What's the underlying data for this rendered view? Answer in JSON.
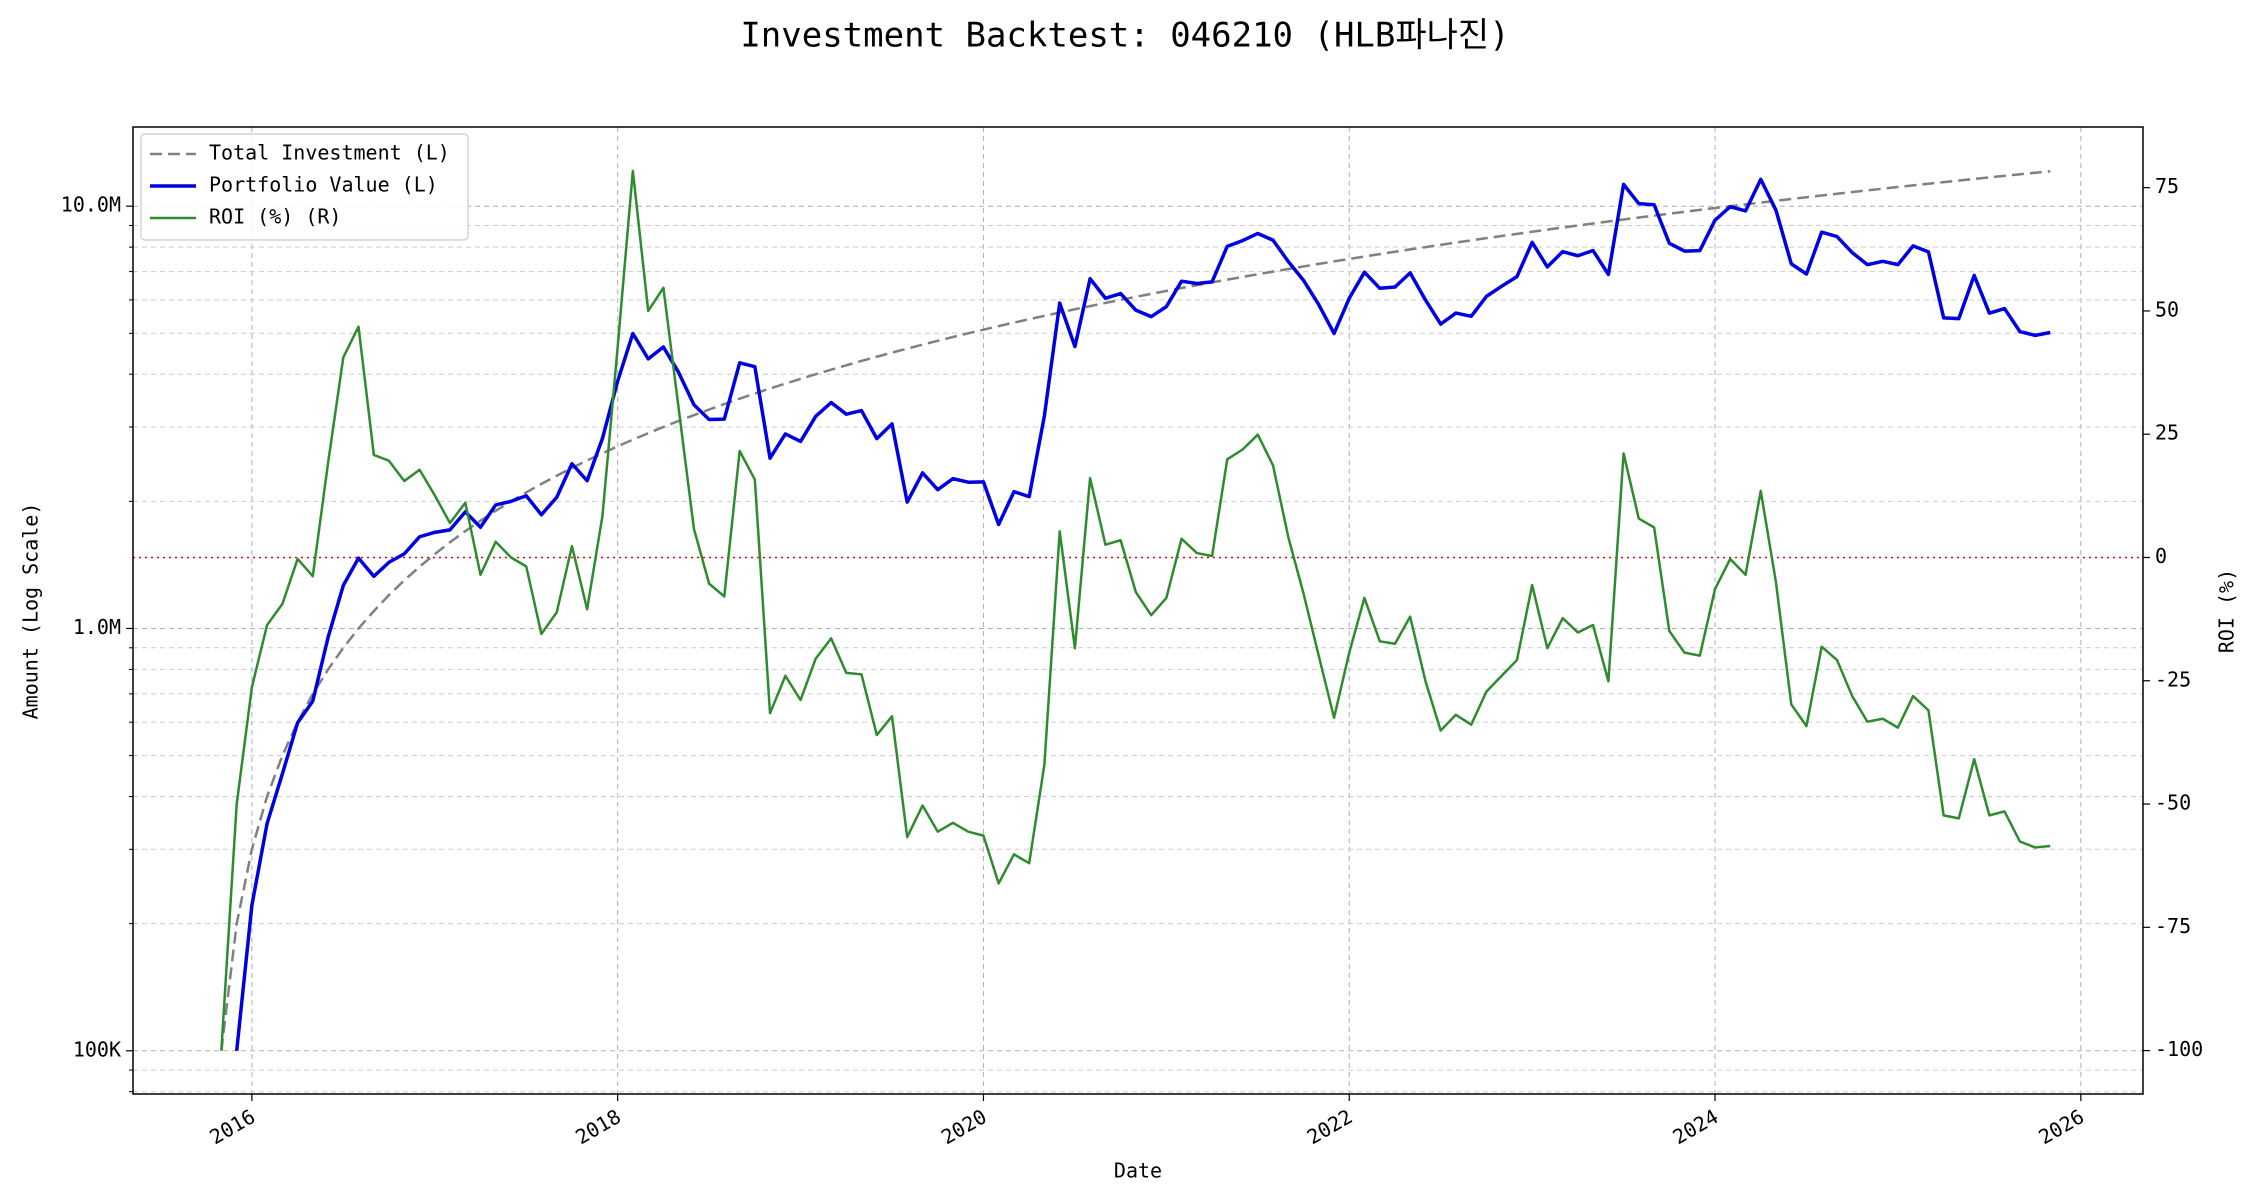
{
  "chart_data": {
    "type": "line",
    "title": "Investment Backtest: 046210 (HLB파나진)",
    "x_label": "Date",
    "y_label": "Amount (Log Scale)",
    "y2_label": "ROI (%)",
    "ylog": true,
    "grid": true,
    "legend": "upper left",
    "y_color": "#0000cd",
    "y2_color": "#228b22",
    "xlim": [
      2015.35,
      2026.34
    ],
    "xticks": [
      2016,
      2018,
      2020,
      2022,
      2024,
      2026
    ],
    "ylim": [
      79000,
      15400000
    ],
    "yticks": [
      {
        "value": 100000,
        "label": "100K"
      },
      {
        "value": 1000000,
        "label": "1.0M"
      },
      {
        "value": 10000000,
        "label": "10.0M"
      }
    ],
    "yminorticks": [
      80000,
      90000,
      200000,
      300000,
      400000,
      500000,
      600000,
      700000,
      800000,
      900000,
      2000000,
      3000000,
      4000000,
      5000000,
      6000000,
      7000000,
      8000000,
      9000000
    ],
    "y2lim": [
      -108.8,
      87.3
    ],
    "y2ticks": [
      -100,
      -75,
      -50,
      -25,
      0,
      25,
      50,
      75
    ],
    "hline": {
      "value": 0,
      "axis": "y2",
      "color": "#ff0000",
      "linestyle": "dotted"
    },
    "x": [
      2015.833,
      2015.917,
      2016,
      2016.083,
      2016.167,
      2016.25,
      2016.333,
      2016.417,
      2016.5,
      2016.583,
      2016.667,
      2016.75,
      2016.833,
      2016.917,
      2017,
      2017.083,
      2017.167,
      2017.25,
      2017.333,
      2017.417,
      2017.5,
      2017.583,
      2017.667,
      2017.75,
      2017.833,
      2017.917,
      2018,
      2018.083,
      2018.167,
      2018.25,
      2018.333,
      2018.417,
      2018.5,
      2018.583,
      2018.667,
      2018.75,
      2018.833,
      2018.917,
      2019,
      2019.083,
      2019.167,
      2019.25,
      2019.333,
      2019.417,
      2019.5,
      2019.583,
      2019.667,
      2019.75,
      2019.833,
      2019.917,
      2020,
      2020.083,
      2020.167,
      2020.25,
      2020.333,
      2020.417,
      2020.5,
      2020.583,
      2020.667,
      2020.75,
      2020.833,
      2020.917,
      2021,
      2021.083,
      2021.167,
      2021.25,
      2021.333,
      2021.417,
      2021.5,
      2021.583,
      2021.667,
      2021.75,
      2021.833,
      2021.917,
      2022,
      2022.083,
      2022.167,
      2022.25,
      2022.333,
      2022.417,
      2022.5,
      2022.583,
      2022.667,
      2022.75,
      2022.833,
      2022.917,
      2023,
      2023.083,
      2023.167,
      2023.25,
      2023.333,
      2023.417,
      2023.5,
      2023.583,
      2023.667,
      2023.75,
      2023.833,
      2023.917,
      2024,
      2024.083,
      2024.167,
      2024.25,
      2024.333,
      2024.417,
      2024.5,
      2024.583,
      2024.667,
      2024.75,
      2024.833,
      2024.917,
      2025,
      2025.083,
      2025.167,
      2025.25,
      2025.333,
      2025.417,
      2025.5,
      2025.583,
      2025.667,
      2025.75,
      2025.833
    ],
    "series": [
      {
        "name": "Total Investment (L)",
        "color": "#808080",
        "linestyle": "dashed",
        "axis": "y",
        "values": [
          100000,
          200000,
          300000,
          400000,
          500000,
          600000,
          700000,
          800000,
          900000,
          1000000,
          1100000,
          1200000,
          1300000,
          1400000,
          1500000,
          1600000,
          1700000,
          1800000,
          1900000,
          2000000,
          2100000,
          2200000,
          2300000,
          2400000,
          2500000,
          2600000,
          2700000,
          2800000,
          2900000,
          3000000,
          3100000,
          3200000,
          3300000,
          3400000,
          3500000,
          3600000,
          3700000,
          3800000,
          3900000,
          4000000,
          4100000,
          4200000,
          4300000,
          4400000,
          4500000,
          4600000,
          4700000,
          4800000,
          4900000,
          5000000,
          5100000,
          5200000,
          5300000,
          5400000,
          5500000,
          5600000,
          5700000,
          5800000,
          5900000,
          6000000,
          6100000,
          6200000,
          6300000,
          6400000,
          6500000,
          6600000,
          6700000,
          6800000,
          6900000,
          7000000,
          7100000,
          7200000,
          7300000,
          7400000,
          7500000,
          7600000,
          7700000,
          7800000,
          7900000,
          8000000,
          8100000,
          8200000,
          8300000,
          8400000,
          8500000,
          8600000,
          8700000,
          8800000,
          8900000,
          9000000,
          9100000,
          9200000,
          9300000,
          9400000,
          9500000,
          9600000,
          9700000,
          9800000,
          9900000,
          10000000,
          10100000,
          10200000,
          10300000,
          10400000,
          10500000,
          10600000,
          10700000,
          10800000,
          10900000,
          11000000,
          11100000,
          11200000,
          11300000,
          11400000,
          11500000,
          11600000,
          11700000,
          11800000,
          11900000,
          12000000,
          12100000
        ]
      },
      {
        "name": "Portfolio Value (L)",
        "color": "#0000e0",
        "linestyle": "solid",
        "axis": "y",
        "values": [
          null,
          100000,
          221000,
          345000,
          453000,
          598000,
          673000,
          954000,
          1265000,
          1468000,
          1329000,
          1435000,
          1502000,
          1649000,
          1689000,
          1712000,
          1889000,
          1737000,
          1961000,
          2000000,
          2062000,
          1859000,
          2045000,
          2455000,
          2238000,
          2821000,
          3853000,
          4995000,
          4350000,
          4641000,
          4042000,
          3386000,
          3125000,
          3131000,
          4256000,
          4169000,
          2531000,
          2888000,
          2773000,
          3180000,
          3428000,
          3217000,
          3281000,
          2816000,
          3051000,
          1992000,
          2336000,
          2131000,
          2264000,
          2220000,
          2224000,
          1763000,
          2109000,
          2052000,
          3185000,
          5897000,
          4651000,
          6734000,
          6053000,
          6210000,
          5673000,
          5475000,
          5783000,
          6643000,
          6559000,
          6620000,
          8033000,
          8289000,
          8618000,
          8309000,
          7391000,
          6674000,
          5847000,
          4995000,
          6053000,
          6977000,
          6391000,
          6435000,
          6952000,
          5992000,
          5257000,
          5584000,
          5486000,
          6115000,
          6460000,
          6811000,
          8213000,
          7181000,
          7805000,
          7632000,
          7853000,
          6891000,
          11262000,
          10143000,
          10080000,
          8170000,
          7828000,
          7850000,
          9266000,
          9970000,
          9747000,
          11577000,
          9785000,
          7301000,
          6909000,
          8681000,
          8474000,
          7765000,
          7270000,
          7403000,
          7271000,
          8053000,
          7797000,
          5438000,
          5417000,
          6856000,
          5581000,
          5723000,
          5046000,
          4944000,
          5022000
        ]
      },
      {
        "name": "ROI (%) (R)",
        "color": "#2e8b2e",
        "linestyle": "solid",
        "axis": "y2",
        "values": [
          -100,
          -50,
          -26.3,
          -13.7,
          -9.4,
          -0.3,
          -3.8,
          19.3,
          40.6,
          46.8,
          20.8,
          19.6,
          15.5,
          17.8,
          12.6,
          7.0,
          11.1,
          -3.5,
          3.2,
          0,
          -1.8,
          -15.5,
          -11.1,
          2.3,
          -10.5,
          8.5,
          42.7,
          78.4,
          50.0,
          54.7,
          30.4,
          5.8,
          -5.3,
          -7.9,
          21.6,
          15.8,
          -31.6,
          -24.0,
          -28.9,
          -20.5,
          -16.4,
          -23.4,
          -23.7,
          -36.0,
          -32.2,
          -56.7,
          -50.3,
          -55.6,
          -53.8,
          -55.6,
          -56.4,
          -66.1,
          -60.2,
          -62.0,
          -42.1,
          5.3,
          -18.4,
          16.1,
          2.6,
          3.5,
          -7.0,
          -11.7,
          -8.2,
          3.8,
          0.9,
          0.3,
          19.9,
          21.9,
          24.9,
          18.7,
          4.1,
          -7.3,
          -19.9,
          -32.5,
          -19.3,
          -8.2,
          -17.0,
          -17.5,
          -12.0,
          -25.1,
          -35.1,
          -31.9,
          -33.9,
          -27.2,
          -24.0,
          -20.8,
          -5.6,
          -18.4,
          -12.3,
          -15.2,
          -13.7,
          -25.1,
          21.1,
          7.9,
          6.1,
          -14.9,
          -19.3,
          -19.9,
          -6.4,
          -0.3,
          -3.5,
          13.5,
          -5.0,
          -29.8,
          -34.2,
          -18.1,
          -20.8,
          -28.1,
          -33.3,
          -32.7,
          -34.5,
          -28.1,
          -31.0,
          -52.3,
          -52.9,
          -40.9,
          -52.3,
          -51.5,
          -57.6,
          -58.8,
          -58.5
        ]
      }
    ]
  }
}
